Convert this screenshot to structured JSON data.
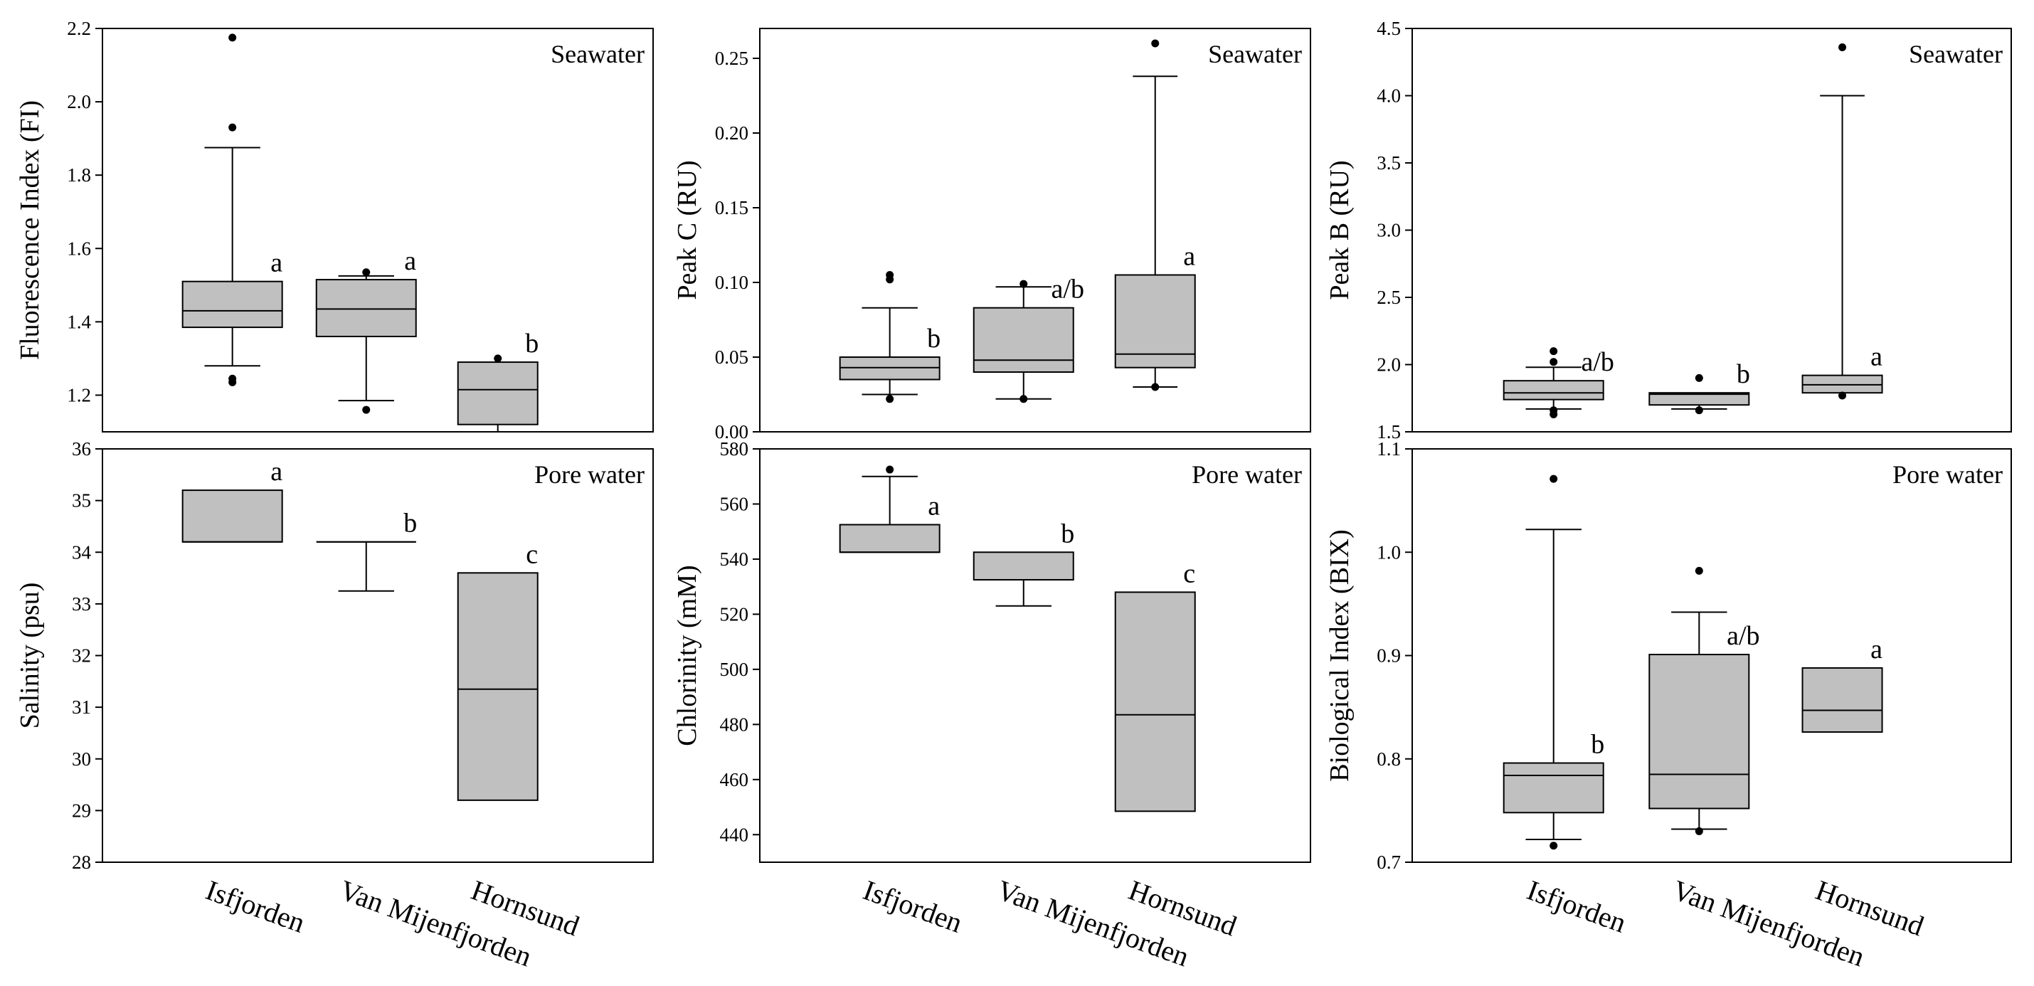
{
  "figure": {
    "categories": [
      "Isfjorden",
      "Van Mijenfjorden",
      "Hornsund"
    ],
    "colors": {
      "box_fill": "#c0c0c0",
      "stroke": "#000000",
      "background": "#ffffff"
    }
  },
  "chart_data": [
    {
      "type": "box",
      "id": "fi",
      "title": "Seawater",
      "xlabel": "",
      "ylabel": "Fluorescence Index (FI)",
      "ylim": [
        1.1,
        2.2
      ],
      "yticks": [
        1.2,
        1.4,
        1.6,
        1.8,
        2.0,
        2.2
      ],
      "ytick_labels": [
        "1.2",
        "1.4",
        "1.6",
        "1.8",
        "2.0",
        "2.2"
      ],
      "categories": [
        "Isfjorden",
        "Van Mijenfjorden",
        "Hornsund"
      ],
      "boxes": [
        {
          "category": "Isfjorden",
          "q1": 1.385,
          "median": 1.43,
          "q3": 1.51,
          "whisker_low": 1.28,
          "whisker_high": 1.875,
          "outliers": [
            1.235,
            1.245,
            1.93,
            2.175
          ],
          "letter": "a"
        },
        {
          "category": "Van Mijenfjorden",
          "q1": 1.36,
          "median": 1.435,
          "q3": 1.515,
          "whisker_low": 1.185,
          "whisker_high": 1.525,
          "outliers": [
            1.16,
            1.535
          ],
          "letter": "a"
        },
        {
          "category": "Hornsund",
          "q1": 1.12,
          "median": 1.215,
          "q3": 1.29,
          "whisker_low": 1.1,
          "whisker_high": 1.29,
          "outliers": [
            1.3
          ],
          "letter": "b"
        }
      ]
    },
    {
      "type": "box",
      "id": "peakc",
      "title": "Seawater",
      "xlabel": "",
      "ylabel": "Peak C (RU)",
      "ylim": [
        0.0,
        0.27
      ],
      "yticks": [
        0.0,
        0.05,
        0.1,
        0.15,
        0.2,
        0.25
      ],
      "ytick_labels": [
        "0.00",
        "0.05",
        "0.10",
        "0.15",
        "0.20",
        "0.25"
      ],
      "categories": [
        "Isfjorden",
        "Van Mijenfjorden",
        "Hornsund"
      ],
      "boxes": [
        {
          "category": "Isfjorden",
          "q1": 0.035,
          "median": 0.043,
          "q3": 0.05,
          "whisker_low": 0.025,
          "whisker_high": 0.083,
          "outliers": [
            0.022,
            0.102,
            0.105
          ],
          "letter": "b"
        },
        {
          "category": "Van Mijenfjorden",
          "q1": 0.04,
          "median": 0.048,
          "q3": 0.083,
          "whisker_low": 0.022,
          "whisker_high": 0.097,
          "outliers": [
            0.022,
            0.099
          ],
          "letter": "a/b"
        },
        {
          "category": "Hornsund",
          "q1": 0.043,
          "median": 0.052,
          "q3": 0.105,
          "whisker_low": 0.03,
          "whisker_high": 0.238,
          "outliers": [
            0.03,
            0.26
          ],
          "letter": "a"
        }
      ]
    },
    {
      "type": "box",
      "id": "peakb",
      "title": "Seawater",
      "xlabel": "",
      "ylabel": "Peak B (RU)",
      "ylim": [
        1.5,
        4.5
      ],
      "yticks": [
        1.5,
        2.0,
        2.5,
        3.0,
        3.5,
        4.0,
        4.5
      ],
      "ytick_labels": [
        "1.5",
        "2.0",
        "2.5",
        "3.0",
        "3.5",
        "4.0",
        "4.5"
      ],
      "categories": [
        "Isfjorden",
        "Van Mijenfjorden",
        "Hornsund"
      ],
      "boxes": [
        {
          "category": "Isfjorden",
          "q1": 1.74,
          "median": 1.79,
          "q3": 1.88,
          "whisker_low": 1.67,
          "whisker_high": 1.98,
          "outliers": [
            1.63,
            1.66,
            2.02,
            2.1
          ],
          "letter": "a/b"
        },
        {
          "category": "Van Mijenfjorden",
          "q1": 1.7,
          "median": 1.78,
          "q3": 1.79,
          "whisker_low": 1.67,
          "whisker_high": 1.79,
          "outliers": [
            1.66,
            1.9
          ],
          "letter": "b"
        },
        {
          "category": "Hornsund",
          "q1": 1.79,
          "median": 1.85,
          "q3": 1.92,
          "whisker_low": 1.79,
          "whisker_high": 4.0,
          "outliers": [
            1.77,
            4.36
          ],
          "letter": "a"
        }
      ]
    },
    {
      "type": "box",
      "id": "salinity",
      "title": "Pore water",
      "xlabel": "",
      "ylabel": "Salinity (psu)",
      "ylim": [
        28,
        36
      ],
      "yticks": [
        28,
        29,
        30,
        31,
        32,
        33,
        34,
        35,
        36
      ],
      "ytick_labels": [
        "28",
        "29",
        "30",
        "31",
        "32",
        "33",
        "34",
        "35",
        "36"
      ],
      "categories": [
        "Isfjorden",
        "Van Mijenfjorden",
        "Hornsund"
      ],
      "boxes": [
        {
          "category": "Isfjorden",
          "q1": 34.2,
          "median": 34.2,
          "q3": 35.2,
          "whisker_low": 34.2,
          "whisker_high": 35.2,
          "outliers": [],
          "letter": "a"
        },
        {
          "category": "Van Mijenfjorden",
          "q1": 34.2,
          "median": 34.2,
          "q3": 34.2,
          "whisker_low": 33.25,
          "whisker_high": 34.2,
          "outliers": [],
          "letter": "b"
        },
        {
          "category": "Hornsund",
          "q1": 29.2,
          "median": 31.35,
          "q3": 33.6,
          "whisker_low": 29.2,
          "whisker_high": 33.6,
          "outliers": [],
          "letter": "c"
        }
      ]
    },
    {
      "type": "box",
      "id": "chlorinity",
      "title": "Pore water",
      "xlabel": "",
      "ylabel": "Chlorinity (mM)",
      "ylim": [
        430,
        580
      ],
      "yticks": [
        440,
        460,
        480,
        500,
        520,
        540,
        560,
        580
      ],
      "ytick_labels": [
        "440",
        "460",
        "480",
        "500",
        "520",
        "540",
        "560",
        "580"
      ],
      "categories": [
        "Isfjorden",
        "Van Mijenfjorden",
        "Hornsund"
      ],
      "boxes": [
        {
          "category": "Isfjorden",
          "q1": 542.5,
          "median": 542.5,
          "q3": 552.5,
          "whisker_low": 542.5,
          "whisker_high": 570,
          "outliers": [
            572.5
          ],
          "letter": "a"
        },
        {
          "category": "Van Mijenfjorden",
          "q1": 532.5,
          "median": 532.5,
          "q3": 542.5,
          "whisker_low": 523,
          "whisker_high": 542.5,
          "outliers": [],
          "letter": "b"
        },
        {
          "category": "Hornsund",
          "q1": 448.5,
          "median": 483.5,
          "q3": 528,
          "whisker_low": 448.5,
          "whisker_high": 528,
          "outliers": [],
          "letter": "c"
        }
      ]
    },
    {
      "type": "box",
      "id": "bix",
      "title": "Pore water",
      "xlabel": "",
      "ylabel": "Biological Index (BIX)",
      "ylim": [
        0.7,
        1.1
      ],
      "yticks": [
        0.7,
        0.8,
        0.9,
        1.0,
        1.1
      ],
      "ytick_labels": [
        "0.7",
        "0.8",
        "0.9",
        "1.0",
        "1.1"
      ],
      "categories": [
        "Isfjorden",
        "Van Mijenfjorden",
        "Hornsund"
      ],
      "boxes": [
        {
          "category": "Isfjorden",
          "q1": 0.748,
          "median": 0.784,
          "q3": 0.796,
          "whisker_low": 0.722,
          "whisker_high": 1.022,
          "outliers": [
            0.716,
            1.071
          ],
          "letter": "b"
        },
        {
          "category": "Van Mijenfjorden",
          "q1": 0.752,
          "median": 0.785,
          "q3": 0.901,
          "whisker_low": 0.732,
          "whisker_high": 0.942,
          "outliers": [
            0.73,
            0.982
          ],
          "letter": "a/b"
        },
        {
          "category": "Hornsund",
          "q1": 0.826,
          "median": 0.847,
          "q3": 0.888,
          "whisker_low": 0.826,
          "whisker_high": 0.888,
          "outliers": [],
          "letter": "a"
        }
      ]
    }
  ]
}
